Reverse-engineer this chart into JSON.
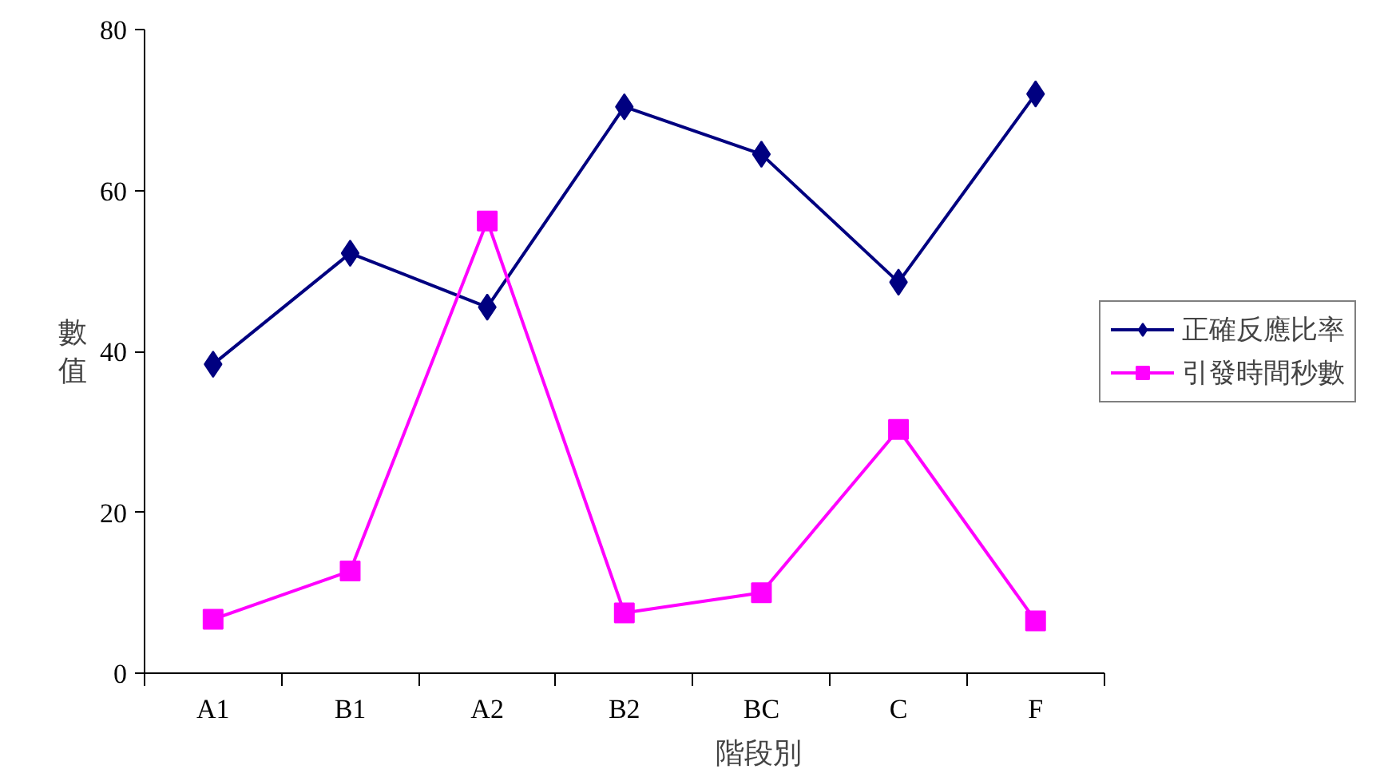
{
  "chart_data": {
    "type": "line",
    "xlabel": "階段別",
    "ylabel": "數值",
    "categories": [
      "A1",
      "B1",
      "A2",
      "B2",
      "BC",
      "C",
      "F"
    ],
    "ylim": [
      0,
      80
    ],
    "yticks": [
      0,
      20,
      40,
      60,
      80
    ],
    "grid": false,
    "legend": "right",
    "series": [
      {
        "name": "正確反應比率",
        "color": "#000080",
        "marker": "diamond",
        "values": [
          38.4,
          52.2,
          45.5,
          70.4,
          64.5,
          48.6,
          72.0
        ]
      },
      {
        "name": "引發時間秒數",
        "color": "#ff00ff",
        "marker": "square",
        "values": [
          6.7,
          12.7,
          56.2,
          7.5,
          10.0,
          30.3,
          6.5
        ]
      }
    ]
  }
}
